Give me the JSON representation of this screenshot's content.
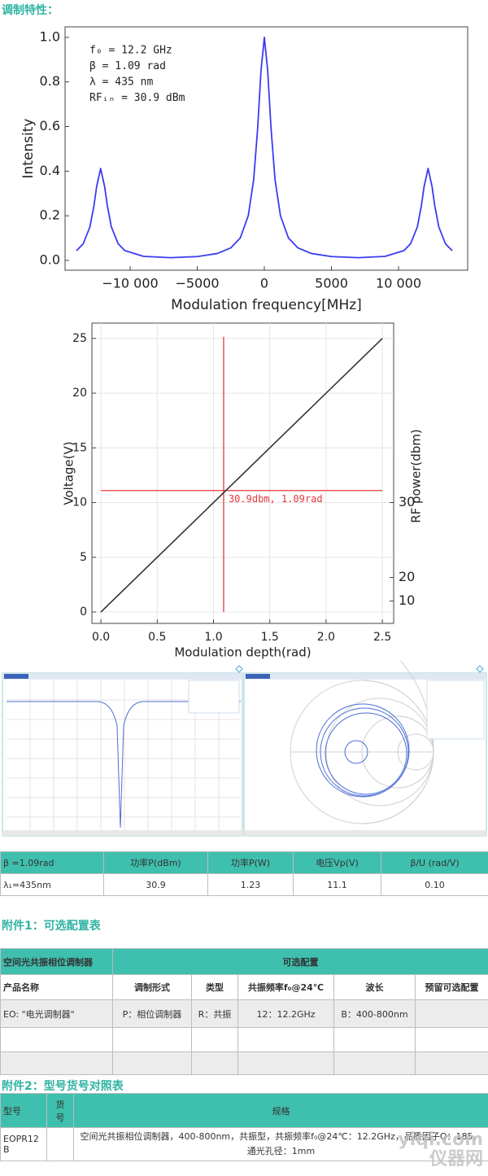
{
  "heading": "调制特性：",
  "chart_data": [
    {
      "type": "line",
      "ylabel": "Intensity",
      "xlabel": "Modulation frequency[MHz]",
      "annotations": [
        "f₀ = 12.2 GHz",
        "β = 1.09 rad",
        "λ = 435 nm",
        "RFᵢₙ = 30.9 dBm"
      ],
      "x": [
        -14000,
        -13500,
        -13000,
        -12700,
        -12500,
        -12200,
        -11900,
        -11700,
        -11400,
        -10900,
        -10400,
        -9000,
        -7000,
        -5000,
        -3500,
        -2500,
        -1800,
        -1200,
        -800,
        -500,
        -250,
        0,
        250,
        500,
        800,
        1200,
        1800,
        2500,
        3500,
        5000,
        7000,
        9000,
        10400,
        10900,
        11400,
        11700,
        11900,
        12200,
        12500,
        12700,
        13000,
        13500,
        14000
      ],
      "values": [
        0.043,
        0.074,
        0.15,
        0.244,
        0.33,
        0.412,
        0.33,
        0.245,
        0.15,
        0.075,
        0.044,
        0.018,
        0.012,
        0.017,
        0.031,
        0.056,
        0.1,
        0.2,
        0.36,
        0.59,
        0.85,
        1.0,
        0.85,
        0.59,
        0.36,
        0.2,
        0.1,
        0.056,
        0.031,
        0.017,
        0.012,
        0.018,
        0.044,
        0.075,
        0.15,
        0.245,
        0.33,
        0.412,
        0.33,
        0.244,
        0.15,
        0.074,
        0.043
      ],
      "color": "#3b3bf2",
      "xlim": [
        -14850,
        15150
      ],
      "ylim": [
        -0.044,
        1.047
      ],
      "xticks": [
        {
          "value": -10000,
          "label": "−10 000"
        },
        {
          "value": -5000,
          "label": "−5000"
        },
        0,
        5000,
        {
          "value": 10000,
          "label": "10 000"
        }
      ],
      "yticks": [
        {
          "value": 0,
          "label": "0.0"
        },
        0.2,
        0.4,
        0.6,
        0.8,
        {
          "value": 1,
          "label": "1.0"
        }
      ],
      "grid": false
    },
    {
      "type": "line",
      "ylabel": "Voltage(V)",
      "xlabel": "Modulation depth(rad)",
      "y2label": "RF power(dbm)",
      "x": [
        0,
        2.5
      ],
      "values": [
        0,
        25
      ],
      "color": "#333333",
      "xlim": [
        -0.08,
        2.6
      ],
      "ylim": [
        -1.04,
        26.4
      ],
      "xticks": [
        {
          "value": 0,
          "label": "0.0"
        },
        0.5,
        {
          "value": 1,
          "label": "1.0"
        },
        1.5,
        {
          "value": 2,
          "label": "2.0"
        },
        2.5
      ],
      "yticks": [
        0,
        5,
        10,
        15,
        20,
        25
      ],
      "y2ticks": [
        10,
        20,
        30
      ],
      "grid": true,
      "marker": {
        "x": 1.09,
        "y": 11.1,
        "label": "30.9dbm, 1.09rad",
        "color": "#e8383d"
      }
    }
  ],
  "table1": {
    "header": [
      "β =1.09rad",
      "功率P(dBm)",
      "功率P(W)",
      "电压Vp(V)",
      "β/U (rad/V)"
    ],
    "rows": [
      [
        "λ₁=435nm",
        "30.9",
        "1.23",
        "11.1",
        "0.10"
      ]
    ]
  },
  "appendix1": {
    "title": "附件1：可选配置表",
    "header": [
      "空间光共振相位调制器",
      "可选配置"
    ],
    "subheader": [
      "产品名称",
      "调制形式",
      "类型",
      "共振频率f₀@24℃",
      "波长",
      "预留可选配置"
    ],
    "rows": [
      [
        "EO: \"电光调制器\"",
        "P：相位调制器",
        "R：共振",
        "12：12.2GHz",
        "B：400-800nm"
      ]
    ]
  },
  "appendix2": {
    "title": "附件2：型号货号对照表",
    "header": [
      "型号",
      "货号",
      "规格"
    ],
    "rows": [
      [
        "EOPR12B",
        "空间光共振相位调制器，400-800nm，共振型，共振频率f₀@24℃：12.2GHz，品质因子Q：185，通光孔径：1mm"
      ]
    ]
  },
  "watermark": "yiqi.com 仪器网"
}
